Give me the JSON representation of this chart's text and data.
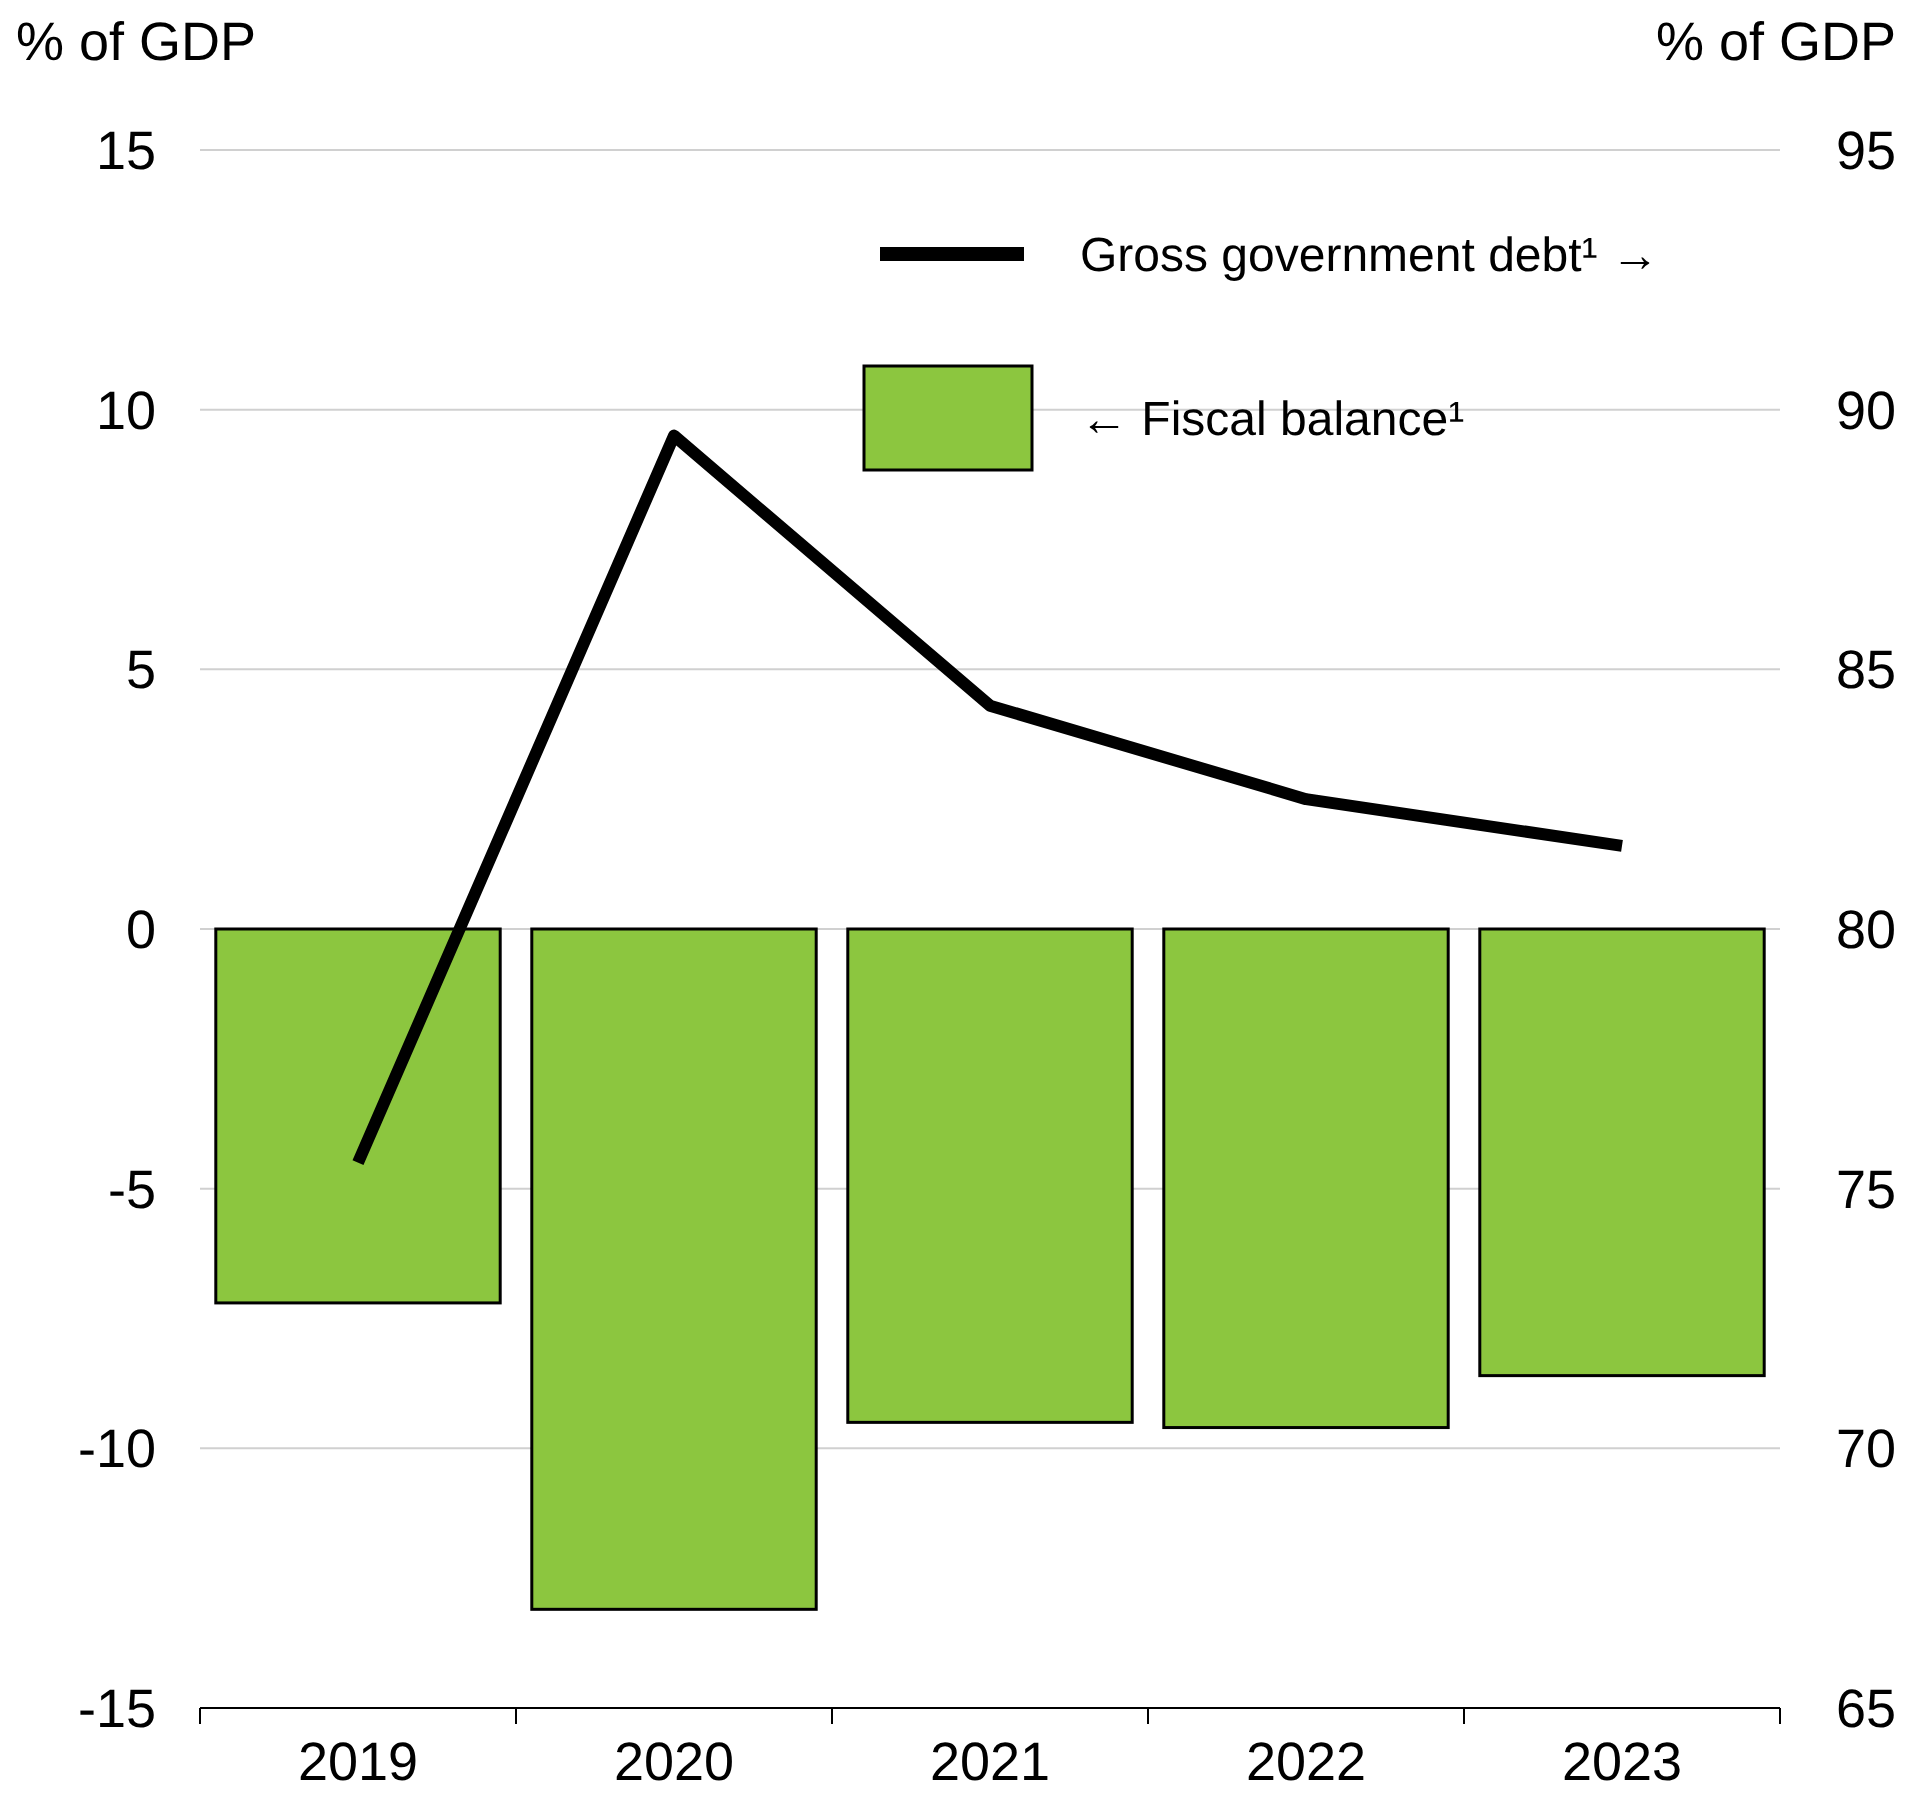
{
  "chart_data": {
    "type": "bar",
    "ylabel": "% of GDP",
    "y2label": "% of GDP",
    "categories": [
      "2019",
      "2020",
      "2021",
      "2022",
      "2023"
    ],
    "series": [
      {
        "name": "Gross government debt¹ →",
        "type": "line",
        "axis": "y2",
        "color": "#000000",
        "values": [
          75.5,
          89.5,
          84.3,
          82.5,
          81.6
        ]
      },
      {
        "name": "← Fiscal balance¹",
        "color": "#8cc63f",
        "values": [
          -7.2,
          -13.1,
          -9.5,
          -9.6,
          -8.6
        ]
      }
    ],
    "ylim": [
      -15,
      15
    ],
    "yticks": [
      -15,
      -10,
      -5,
      0,
      5,
      10,
      15
    ],
    "y2lim": [
      65,
      95
    ],
    "y2ticks": [
      65,
      70,
      75,
      80,
      85,
      90,
      95
    ],
    "grid": "y",
    "legend": "top right"
  }
}
